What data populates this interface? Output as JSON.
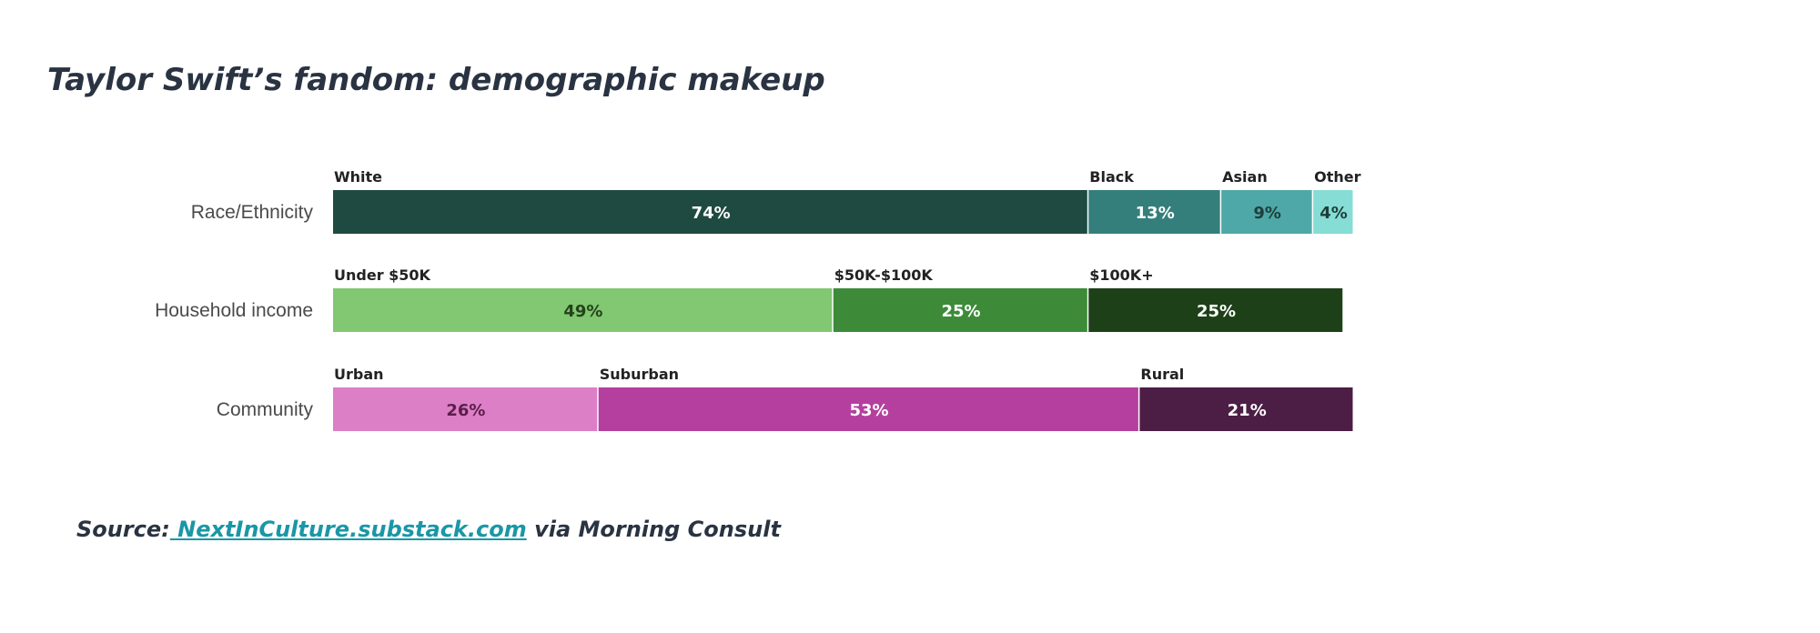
{
  "title": "Taylor Swift’s fandom: demographic makeup",
  "source": {
    "prefix": "Source:",
    "link_text": " NextInCulture.substack.com",
    "suffix": " via Morning Consult"
  },
  "chart_data": {
    "type": "bar",
    "orientation": "horizontal",
    "stacked": true,
    "legend": "inline-above-segments",
    "grid": false,
    "xlim": [
      0,
      100
    ],
    "rows": [
      {
        "label": "Race/Ethnicity",
        "segments": [
          {
            "name": "White",
            "value": 74,
            "value_label": "74%",
            "color": "#1f4a42",
            "text_color": "#ffffff"
          },
          {
            "name": "Black",
            "value": 13,
            "value_label": "13%",
            "color": "#347f7b",
            "text_color": "#ffffff"
          },
          {
            "name": "Asian",
            "value": 9,
            "value_label": "9%",
            "color": "#4ea8a7",
            "text_color": "#1d3f3b"
          },
          {
            "name": "Other",
            "value": 4,
            "value_label": "4%",
            "color": "#86ddd5",
            "text_color": "#1d3f3b"
          }
        ]
      },
      {
        "label": "Household income",
        "segments": [
          {
            "name": "Under $50K",
            "value": 49,
            "value_label": "49%",
            "color": "#82c771",
            "text_color": "#23431c"
          },
          {
            "name": "$50K-$100K",
            "value": 25,
            "value_label": "25%",
            "color": "#3d8a39",
            "text_color": "#ffffff"
          },
          {
            "name": "$100K+",
            "value": 25,
            "value_label": "25%",
            "color": "#1e4019",
            "text_color": "#ffffff"
          }
        ]
      },
      {
        "label": "Community",
        "segments": [
          {
            "name": "Urban",
            "value": 26,
            "value_label": "26%",
            "color": "#dd7fc7",
            "text_color": "#5b1e4c"
          },
          {
            "name": "Suburban",
            "value": 53,
            "value_label": "53%",
            "color": "#b53f9e",
            "text_color": "#ffffff"
          },
          {
            "name": "Rural",
            "value": 21,
            "value_label": "21%",
            "color": "#4c1d45",
            "text_color": "#ffffff"
          }
        ]
      }
    ]
  }
}
